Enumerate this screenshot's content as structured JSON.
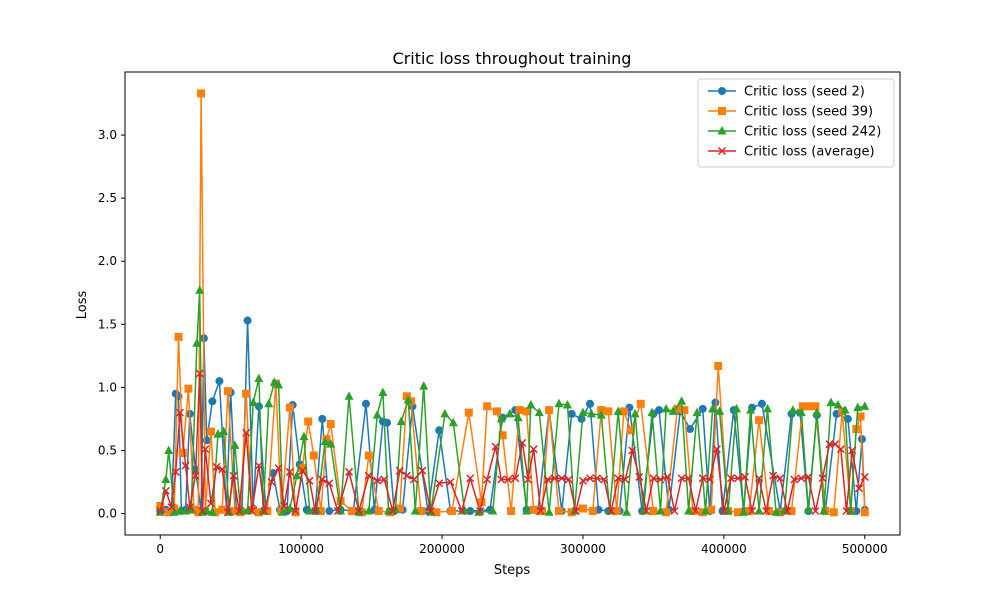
{
  "chart_data": {
    "type": "line",
    "title": "Critic loss throughout training",
    "xlabel": "Steps",
    "ylabel": "Loss",
    "xlim": [
      -25000,
      525000
    ],
    "ylim": [
      -0.17,
      3.5
    ],
    "xticks": [
      0,
      100000,
      200000,
      300000,
      400000,
      500000
    ],
    "xtick_labels": [
      "0",
      "100000",
      "200000",
      "300000",
      "400000",
      "500000"
    ],
    "yticks": [
      0.0,
      0.5,
      1.0,
      1.5,
      2.0,
      2.5,
      3.0
    ],
    "ytick_labels": [
      "0.0",
      "0.5",
      "1.0",
      "1.5",
      "2.0",
      "2.5",
      "3.0"
    ],
    "grid": false,
    "legend_position": "upper right",
    "series": [
      {
        "name": "Critic loss (seed 2)",
        "color": "#1f77b4",
        "marker": "circle",
        "x": [
          0,
          4000,
          8000,
          11000,
          13000,
          15000,
          18000,
          21000,
          25000,
          29000,
          31000,
          33000,
          37000,
          42000,
          47000,
          50000,
          54000,
          58000,
          62000,
          66000,
          70000,
          75000,
          80000,
          85000,
          90000,
          94000,
          99000,
          104000,
          110000,
          115000,
          120000,
          128000,
          137000,
          146000,
          152000,
          158000,
          161000,
          166000,
          172000,
          179000,
          190000,
          198000,
          206000,
          220000,
          234000,
          243000,
          252000,
          260000,
          268000,
          276000,
          285000,
          292000,
          299000,
          305000,
          311000,
          318000,
          326000,
          333000,
          342000,
          350000,
          354000,
          361000,
          369000,
          376000,
          385000,
          390000,
          394000,
          399000,
          407000,
          414000,
          420000,
          427000,
          440000,
          448000,
          454000,
          460000,
          466000,
          472000,
          480000,
          488000,
          494000,
          498000,
          500000
        ],
        "y": [
          0.02,
          0.03,
          0.02,
          0.95,
          0.93,
          0.02,
          0.03,
          0.79,
          0.35,
          0.02,
          1.39,
          0.58,
          0.89,
          1.05,
          0.03,
          0.96,
          0.02,
          0.02,
          1.53,
          0.04,
          0.85,
          0.02,
          0.32,
          0.03,
          0.02,
          0.86,
          0.39,
          0.03,
          0.02,
          0.75,
          0.02,
          0.03,
          0.02,
          0.87,
          0.03,
          0.73,
          0.72,
          0.02,
          0.03,
          0.85,
          0.02,
          0.66,
          0.02,
          0.02,
          0.03,
          0.76,
          0.82,
          0.03,
          0.02,
          0.82,
          0.02,
          0.79,
          0.75,
          0.87,
          0.03,
          0.02,
          0.02,
          0.84,
          0.02,
          0.79,
          0.82,
          0.03,
          0.81,
          0.67,
          0.83,
          0.02,
          0.88,
          0.02,
          0.82,
          0.02,
          0.84,
          0.87,
          0.02,
          0.79,
          0.8,
          0.02,
          0.78,
          0.02,
          0.79,
          0.75,
          0.02,
          0.59,
          0.03
        ]
      },
      {
        "name": "Critic loss (seed 39)",
        "color": "#ff7f0e",
        "marker": "square",
        "x": [
          0,
          6000,
          10000,
          13000,
          16000,
          20000,
          24000,
          27000,
          29000,
          32000,
          36000,
          39000,
          44000,
          48000,
          53000,
          57000,
          61000,
          65000,
          70000,
          76000,
          82000,
          86000,
          92000,
          96000,
          101000,
          105000,
          109000,
          114000,
          118000,
          121000,
          128000,
          136000,
          143000,
          148000,
          155000,
          163000,
          170000,
          175000,
          178000,
          185000,
          196000,
          207000,
          219000,
          228000,
          232000,
          239000,
          243000,
          249000,
          255000,
          260000,
          265000,
          271000,
          276000,
          283000,
          292000,
          300000,
          307000,
          313000,
          318000,
          324000,
          329000,
          334000,
          341000,
          350000,
          359000,
          367000,
          372000,
          378000,
          385000,
          391000,
          396000,
          403000,
          410000,
          418000,
          425000,
          432000,
          440000,
          448000,
          456000,
          461000,
          465000,
          472000,
          478000,
          484000,
          490000,
          494000,
          497000,
          500000
        ],
        "y": [
          0.06,
          0.01,
          0.04,
          1.4,
          0.48,
          0.99,
          0.03,
          0.01,
          3.33,
          0.02,
          0.65,
          0.01,
          0.03,
          0.97,
          0.02,
          0.01,
          0.95,
          0.03,
          0.01,
          0.02,
          1.03,
          0.02,
          0.84,
          0.01,
          0.36,
          0.73,
          0.46,
          0.02,
          0.59,
          0.71,
          0.1,
          0.02,
          0.01,
          0.46,
          0.02,
          0.01,
          0.04,
          0.93,
          0.89,
          0.02,
          0.01,
          0.02,
          0.8,
          0.09,
          0.85,
          0.81,
          0.62,
          0.02,
          0.82,
          0.81,
          0.03,
          0.02,
          0.82,
          0.02,
          0.01,
          0.04,
          0.02,
          0.82,
          0.81,
          0.02,
          0.81,
          0.66,
          0.87,
          0.02,
          0.01,
          0.83,
          0.82,
          0.02,
          0.01,
          0.03,
          1.17,
          0.02,
          0.01,
          0.02,
          0.74,
          0.02,
          0.01,
          0.02,
          0.85,
          0.85,
          0.85,
          0.02,
          0.01,
          0.81,
          0.02,
          0.67,
          0.77,
          0.01
        ]
      },
      {
        "name": "Critic loss (seed 242)",
        "color": "#2ca02c",
        "marker": "triangle",
        "x": [
          0,
          4000,
          6000,
          10000,
          14000,
          18000,
          22000,
          26000,
          28000,
          30000,
          33000,
          37000,
          41000,
          45000,
          49000,
          53000,
          57000,
          62000,
          66000,
          70000,
          73000,
          77000,
          81000,
          84000,
          87000,
          92000,
          97000,
          102000,
          106000,
          111000,
          117000,
          121000,
          128000,
          134000,
          141000,
          148000,
          154000,
          158000,
          162000,
          167000,
          171000,
          176000,
          181000,
          187000,
          192000,
          202000,
          208000,
          216000,
          226000,
          236000,
          242000,
          248000,
          254000,
          260000,
          263000,
          269000,
          276000,
          283000,
          289000,
          294000,
          300000,
          306000,
          313000,
          319000,
          325000,
          331000,
          337000,
          343000,
          349000,
          355000,
          359000,
          364000,
          370000,
          375000,
          381000,
          387000,
          392000,
          397000,
          403000,
          409000,
          414000,
          419000,
          425000,
          431000,
          437000,
          443000,
          449000,
          455000,
          460000,
          466000,
          471000,
          476000,
          481000,
          486000,
          490000,
          495000,
          500000
        ],
        "y": [
          0.01,
          0.27,
          0.5,
          0.01,
          0.02,
          0.02,
          0.03,
          1.35,
          1.77,
          0.01,
          0.02,
          0.01,
          0.63,
          0.65,
          0.01,
          0.54,
          0.02,
          0.02,
          0.88,
          1.07,
          0.02,
          0.87,
          1.04,
          1.02,
          0.01,
          0.04,
          0.3,
          0.61,
          0.02,
          0.03,
          0.57,
          0.55,
          0.02,
          0.93,
          0.01,
          0.02,
          0.78,
          0.96,
          0.02,
          0.03,
          0.73,
          0.9,
          0.02,
          1.01,
          0.01,
          0.79,
          0.72,
          0.02,
          0.01,
          0.02,
          0.75,
          0.79,
          0.76,
          0.02,
          0.86,
          0.8,
          0.01,
          0.87,
          0.86,
          0.02,
          0.8,
          0.79,
          0.78,
          0.02,
          0.81,
          0.01,
          0.79,
          0.02,
          0.8,
          0.02,
          0.83,
          0.81,
          0.89,
          0.02,
          0.8,
          0.02,
          0.83,
          0.81,
          0.02,
          0.83,
          0.01,
          0.82,
          0.02,
          0.83,
          0.01,
          0.02,
          0.82,
          0.8,
          0.03,
          0.8,
          0.02,
          0.88,
          0.86,
          0.82,
          0.02,
          0.84,
          0.85
        ]
      },
      {
        "name": "Critic loss (average)",
        "color": "#d62728",
        "marker": "x",
        "x": [
          0,
          4000,
          8000,
          11000,
          14000,
          18000,
          21000,
          25000,
          28000,
          30000,
          32000,
          36000,
          40000,
          44000,
          48000,
          52000,
          56000,
          61000,
          65000,
          70000,
          74000,
          79000,
          84000,
          88000,
          92000,
          96000,
          101000,
          106000,
          110000,
          115000,
          120000,
          126000,
          134000,
          141000,
          148000,
          154000,
          159000,
          165000,
          170000,
          175000,
          180000,
          186000,
          192000,
          198000,
          206000,
          214000,
          220000,
          227000,
          232000,
          238000,
          242000,
          247000,
          252000,
          257000,
          261000,
          265000,
          270000,
          275000,
          280000,
          285000,
          290000,
          295000,
          300000,
          305000,
          310000,
          315000,
          320000,
          325000,
          330000,
          335000,
          340000,
          345000,
          350000,
          355000,
          360000,
          365000,
          370000,
          375000,
          380000,
          385000,
          390000,
          395000,
          400000,
          405000,
          410000,
          415000,
          420000,
          425000,
          430000,
          435000,
          440000,
          445000,
          450000,
          455000,
          460000,
          465000,
          470000,
          475000,
          479000,
          483000,
          487000,
          491000,
          496000,
          500000
        ],
        "y": [
          0.02,
          0.18,
          0.05,
          0.33,
          0.8,
          0.38,
          0.05,
          0.3,
          1.11,
          0.02,
          0.51,
          0.08,
          0.37,
          0.35,
          0.01,
          0.3,
          0.02,
          0.64,
          0.02,
          0.38,
          0.02,
          0.25,
          0.36,
          0.06,
          0.33,
          0.02,
          0.34,
          0.26,
          0.02,
          0.27,
          0.24,
          0.02,
          0.33,
          0.02,
          0.3,
          0.26,
          0.27,
          0.02,
          0.34,
          0.3,
          0.27,
          0.34,
          0.02,
          0.24,
          0.25,
          0.02,
          0.28,
          0.02,
          0.27,
          0.53,
          0.27,
          0.27,
          0.28,
          0.56,
          0.27,
          0.51,
          0.02,
          0.27,
          0.28,
          0.28,
          0.27,
          0.02,
          0.26,
          0.28,
          0.28,
          0.27,
          0.02,
          0.28,
          0.27,
          0.5,
          0.29,
          0.02,
          0.28,
          0.27,
          0.29,
          0.02,
          0.28,
          0.28,
          0.02,
          0.28,
          0.27,
          0.51,
          0.02,
          0.28,
          0.28,
          0.29,
          0.02,
          0.28,
          0.02,
          0.3,
          0.28,
          0.02,
          0.27,
          0.28,
          0.29,
          0.02,
          0.28,
          0.55,
          0.55,
          0.51,
          0.02,
          0.5,
          0.2,
          0.29
        ]
      }
    ]
  }
}
